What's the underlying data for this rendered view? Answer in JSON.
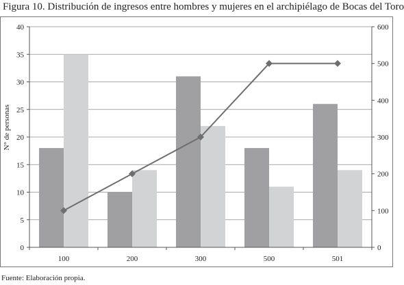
{
  "title": "Figura 10. Distribución de ingresos entre hombres y mujeres en el archipiélago de Bocas del Toro",
  "footer": "Fuente: Elaboración propia.",
  "colors": {
    "series_dark": "#a0a0a3",
    "series_light": "#d2d3d5",
    "line": "#6e6e6e",
    "grid": "#8c8c8c"
  },
  "chart_data": {
    "type": "bar",
    "title": "Figura 10. Distribución de ingresos entre hombres y mujeres en el archipiélago de Bocas del Toro",
    "categories": [
      "100",
      "200",
      "300",
      "500",
      "501"
    ],
    "series": [
      {
        "values": [
          18,
          10,
          31,
          18,
          26
        ],
        "axis": "left",
        "kind": "bar"
      },
      {
        "values": [
          35,
          14,
          22,
          11,
          14
        ],
        "axis": "left",
        "kind": "bar"
      },
      {
        "values": [
          100,
          200,
          300,
          500,
          500
        ],
        "axis": "right",
        "kind": "line",
        "marker": "diamond"
      }
    ],
    "ylabel": "N° de personas",
    "xlabel": "",
    "ylim": [
      0,
      40
    ],
    "yticks": [
      0,
      5,
      10,
      15,
      20,
      25,
      30,
      35,
      40
    ],
    "y2lim": [
      0,
      600
    ],
    "y2ticks": [
      0,
      100,
      200,
      300,
      400,
      500,
      600
    ],
    "grid": "horizontal",
    "legend": "none"
  }
}
